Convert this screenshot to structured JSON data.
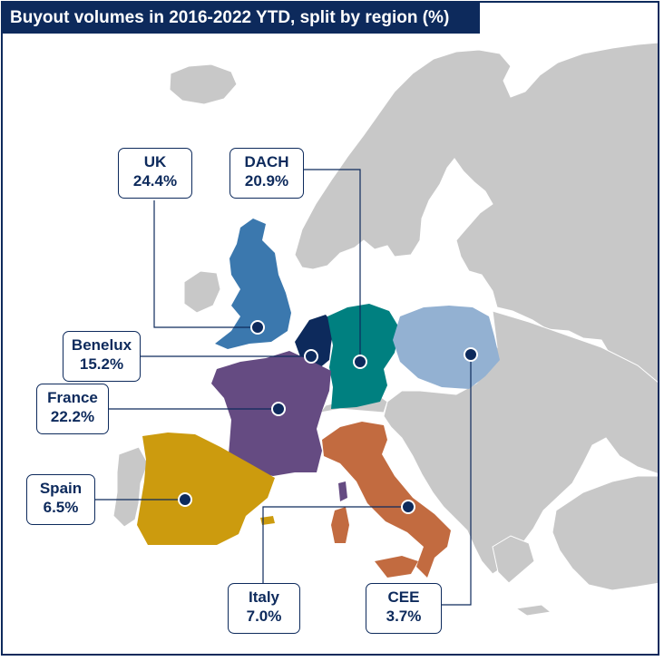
{
  "title": "Buyout volumes in 2016-2022 YTD, split by region (%)",
  "colors": {
    "frame": "#0d2a5c",
    "land": "#c8c8c8",
    "uk": "#3b78ae",
    "benelux": "#0d2a5c",
    "dach": "#008080",
    "france": "#654b82",
    "spain": "#cc9b0e",
    "italy": "#c26b40",
    "cee": "#93b1d2"
  },
  "regions": [
    {
      "name": "UK",
      "value": "24.4%"
    },
    {
      "name": "DACH",
      "value": "20.9%"
    },
    {
      "name": "Benelux",
      "value": "15.2%"
    },
    {
      "name": "France",
      "value": "22.2%"
    },
    {
      "name": "Spain",
      "value": "6.5%"
    },
    {
      "name": "Italy",
      "value": "7.0%"
    },
    {
      "name": "CEE",
      "value": "3.7%"
    }
  ]
}
